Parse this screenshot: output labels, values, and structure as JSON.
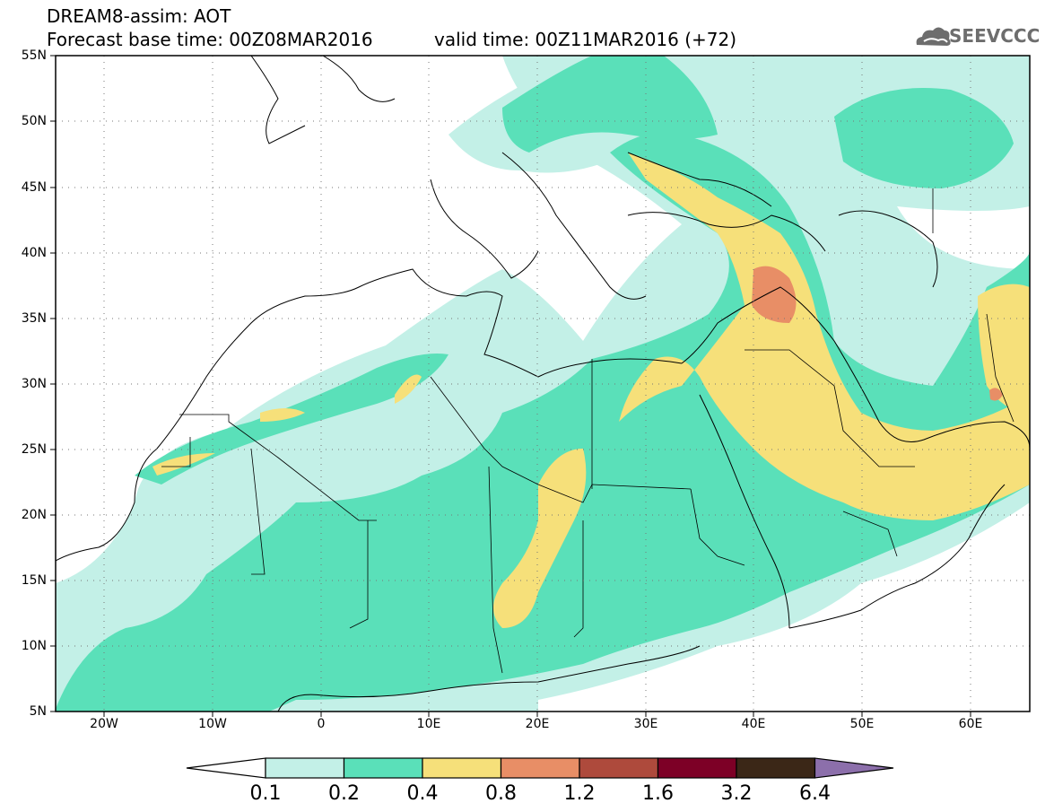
{
  "header": {
    "title_line1": "DREAM8-assim: AOT",
    "title_line2": "Forecast base time: 00Z08MAR2016",
    "valid_time": "valid time: 00Z11MAR2016 (+72)"
  },
  "logo": {
    "text": "SEEVCCC",
    "icon": "cloud-icon"
  },
  "map": {
    "projection": "lat-lon",
    "lon_range": [
      -25,
      65
    ],
    "lat_range": [
      5,
      55
    ],
    "lat_ticks": [
      "55N",
      "50N",
      "45N",
      "40N",
      "35N",
      "30N",
      "25N",
      "20N",
      "15N",
      "10N",
      "5N"
    ],
    "lon_ticks": [
      "20W",
      "10W",
      "0",
      "10E",
      "20E",
      "30E",
      "40E",
      "50E",
      "60E"
    ],
    "grid": "dotted"
  },
  "colorbar": {
    "labels": [
      "0.1",
      "0.2",
      "0.4",
      "0.8",
      "1.2",
      "1.6",
      "3.2",
      "6.4"
    ],
    "colors": [
      "#ffffff",
      "#c3f0e7",
      "#5ae0b9",
      "#f6e07a",
      "#e88e66",
      "#ae4a3c",
      "#7d0026",
      "#3b2717",
      "#8c6fab"
    ]
  }
}
